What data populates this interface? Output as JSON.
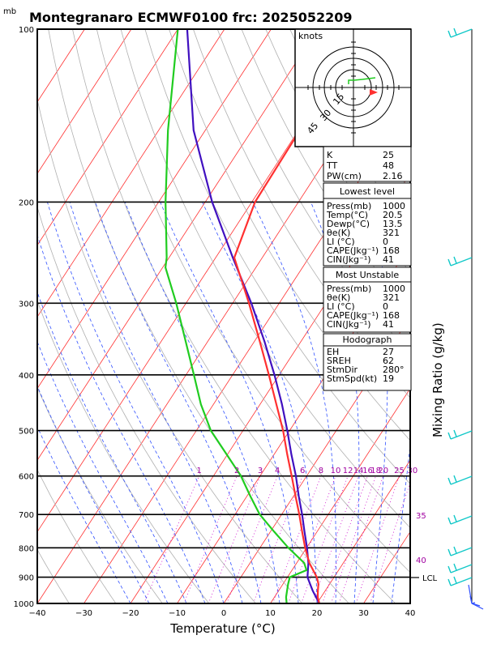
{
  "header": {
    "unit_mb": "mb",
    "title": "Montegranaro ECMWF0100 frc: 2025052209"
  },
  "chart_data": {
    "type": "line",
    "title": "Montegranaro ECMWF0100 frc: 2025052209",
    "xlabel": "Temperature (°C)",
    "ylabel_right": "Mixing Ratio (g/kg)",
    "xlim": [
      -40,
      40
    ],
    "ylim_mb": [
      1000,
      100
    ],
    "y_scale": "log",
    "x_ticks": [
      "−40",
      "−30",
      "−20",
      "−10",
      "0",
      "10",
      "20",
      "30",
      "40"
    ],
    "pressure_ticks": [
      1000,
      900,
      800,
      700,
      600,
      500,
      400,
      300,
      200,
      100
    ],
    "mixing_ratio_labels": [
      "1",
      "2",
      "3",
      "4",
      "6",
      "8",
      "10",
      "12",
      "14",
      "16",
      "18",
      "20",
      "25",
      "30"
    ],
    "theta_e_labels": [
      "35",
      "40"
    ],
    "series": [
      {
        "name": "Temperature",
        "color": "#ff3030",
        "points": [
          [
            1000,
            20.5
          ],
          [
            975,
            19.3
          ],
          [
            950,
            18.4
          ],
          [
            925,
            17.6
          ],
          [
            900,
            16.3
          ],
          [
            850,
            12.7
          ],
          [
            800,
            9.7
          ],
          [
            750,
            6.8
          ],
          [
            700,
            3.8
          ],
          [
            650,
            0.4
          ],
          [
            600,
            -3.2
          ],
          [
            550,
            -7.2
          ],
          [
            500,
            -11.4
          ],
          [
            450,
            -16.5
          ],
          [
            400,
            -22.2
          ],
          [
            350,
            -28.8
          ],
          [
            300,
            -36.5
          ],
          [
            250,
            -46.0
          ],
          [
            200,
            -49.3
          ],
          [
            150,
            -49.7
          ],
          [
            100,
            -52.0
          ]
        ]
      },
      {
        "name": "Dewpoint",
        "color": "#20cc20",
        "points": [
          [
            1000,
            13.5
          ],
          [
            975,
            12.5
          ],
          [
            950,
            11.8
          ],
          [
            925,
            11.1
          ],
          [
            900,
            10.5
          ],
          [
            875,
            13.1
          ],
          [
            850,
            11.6
          ],
          [
            800,
            6.1
          ],
          [
            750,
            0.8
          ],
          [
            700,
            -4.7
          ],
          [
            650,
            -9.3
          ],
          [
            600,
            -14.1
          ],
          [
            550,
            -20.2
          ],
          [
            500,
            -26.9
          ],
          [
            450,
            -32.7
          ],
          [
            400,
            -38.3
          ],
          [
            350,
            -44.7
          ],
          [
            300,
            -52.1
          ],
          [
            260,
            -59.4
          ],
          [
            250,
            -60.5
          ],
          [
            200,
            -68.5
          ],
          [
            150,
            -78.0
          ],
          [
            100,
            -90.0
          ]
        ]
      },
      {
        "name": "Parcel",
        "color": "#4010c0",
        "points": [
          [
            1000,
            20.5
          ],
          [
            950,
            17.3
          ],
          [
            925,
            15.8
          ],
          [
            900,
            14.3
          ],
          [
            850,
            12.5
          ],
          [
            800,
            10.1
          ],
          [
            750,
            7.3
          ],
          [
            700,
            4.4
          ],
          [
            650,
            1.1
          ],
          [
            600,
            -2.3
          ],
          [
            550,
            -6.3
          ],
          [
            500,
            -10.5
          ],
          [
            450,
            -15.3
          ],
          [
            400,
            -21.0
          ],
          [
            350,
            -27.8
          ],
          [
            300,
            -36.0
          ],
          [
            250,
            -46.3
          ],
          [
            200,
            -58.5
          ],
          [
            150,
            -72.5
          ],
          [
            100,
            -88.0
          ]
        ]
      }
    ],
    "lcl": {
      "label": "LCL",
      "pressure_mb": 900
    }
  },
  "hodograph": {
    "units": "knots",
    "rings": [
      "15",
      "30",
      "45"
    ]
  },
  "indices": {
    "general": [
      {
        "label": "K",
        "value": "25"
      },
      {
        "label": "TT",
        "value": "48"
      },
      {
        "label": "PW(cm)",
        "value": "2.16"
      }
    ],
    "lowest_level": {
      "title": "Lowest level",
      "rows": [
        {
          "label": "Press(mb)",
          "value": "1000"
        },
        {
          "label": "Temp(°C)",
          "value": "20.5"
        },
        {
          "label": "Dewp(°C)",
          "value": "13.5"
        },
        {
          "label": "θe(K)",
          "value": "321"
        },
        {
          "label": "LI (°C)",
          "value": "0"
        },
        {
          "label": "CAPE(Jkg⁻¹)",
          "value": "168"
        },
        {
          "label": "CIN(Jkg⁻¹)",
          "value": "41"
        }
      ]
    },
    "most_unstable": {
      "title": "Most Unstable",
      "rows": [
        {
          "label": "Press(mb)",
          "value": "1000"
        },
        {
          "label": "θe(K)",
          "value": "321"
        },
        {
          "label": "LI (°C)",
          "value": "0"
        },
        {
          "label": "CAPE(Jkg⁻¹)",
          "value": "168"
        },
        {
          "label": "CIN(Jkg⁻¹)",
          "value": "41"
        }
      ]
    },
    "hodograph_params": {
      "title": "Hodograph",
      "rows": [
        {
          "label": "EH",
          "value": "27"
        },
        {
          "label": "SREH",
          "value": "62"
        },
        {
          "label": "StmDir",
          "value": "280°"
        },
        {
          "label": "StmSpd(kt)",
          "value": "19"
        }
      ]
    }
  },
  "colors": {
    "frame": "#000000",
    "isotherm": "#ff3030",
    "dry_adiabat": "#b0b0b0",
    "moist_adiabat": "#3050ff",
    "mixing_ratio": "#cc00cc",
    "wind_barb": "#10c8c8"
  }
}
